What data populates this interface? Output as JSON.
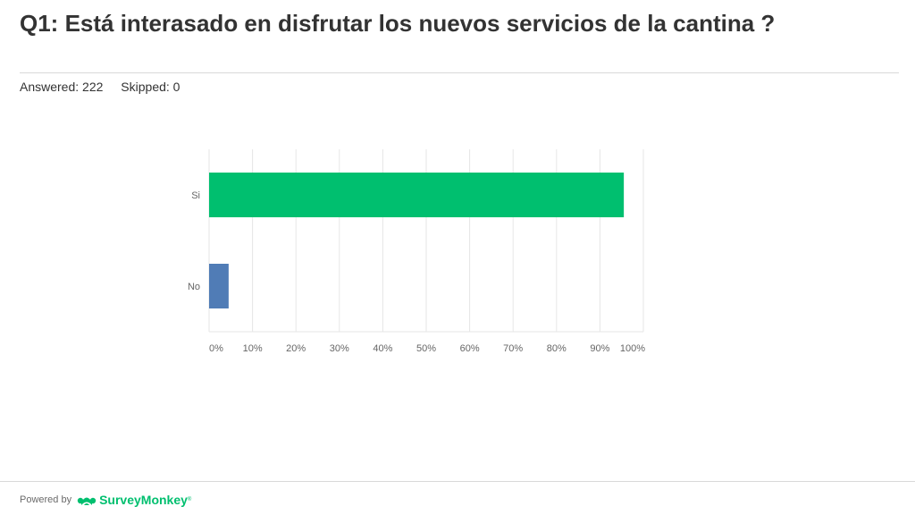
{
  "question": {
    "title": "Q1: Está interasado en disfrutar los nuevos servicios de la cantina ?"
  },
  "stats": {
    "answered": "Answered: 222",
    "skipped": "Skipped: 0"
  },
  "footer": {
    "powered_by": "Powered by",
    "brand": "SurveyMonkey",
    "brand_mark": "®",
    "logo_icon": "surveymonkey-logo-icon"
  },
  "colors": {
    "bar_si": "#00bf6f",
    "bar_no": "#507cb6",
    "grid": "#e6e6e6",
    "axis_text": "#666666",
    "brand": "#00bf6f"
  },
  "chart_data": {
    "type": "bar",
    "orientation": "horizontal",
    "categories": [
      "Si",
      "No"
    ],
    "values": [
      95.5,
      4.5
    ],
    "value_unit": "%",
    "xlim": [
      0,
      100
    ],
    "x_ticks": [
      "0%",
      "10%",
      "20%",
      "30%",
      "40%",
      "50%",
      "60%",
      "70%",
      "80%",
      "90%",
      "100%"
    ],
    "grid": true,
    "title": "",
    "xlabel": "",
    "ylabel": ""
  }
}
